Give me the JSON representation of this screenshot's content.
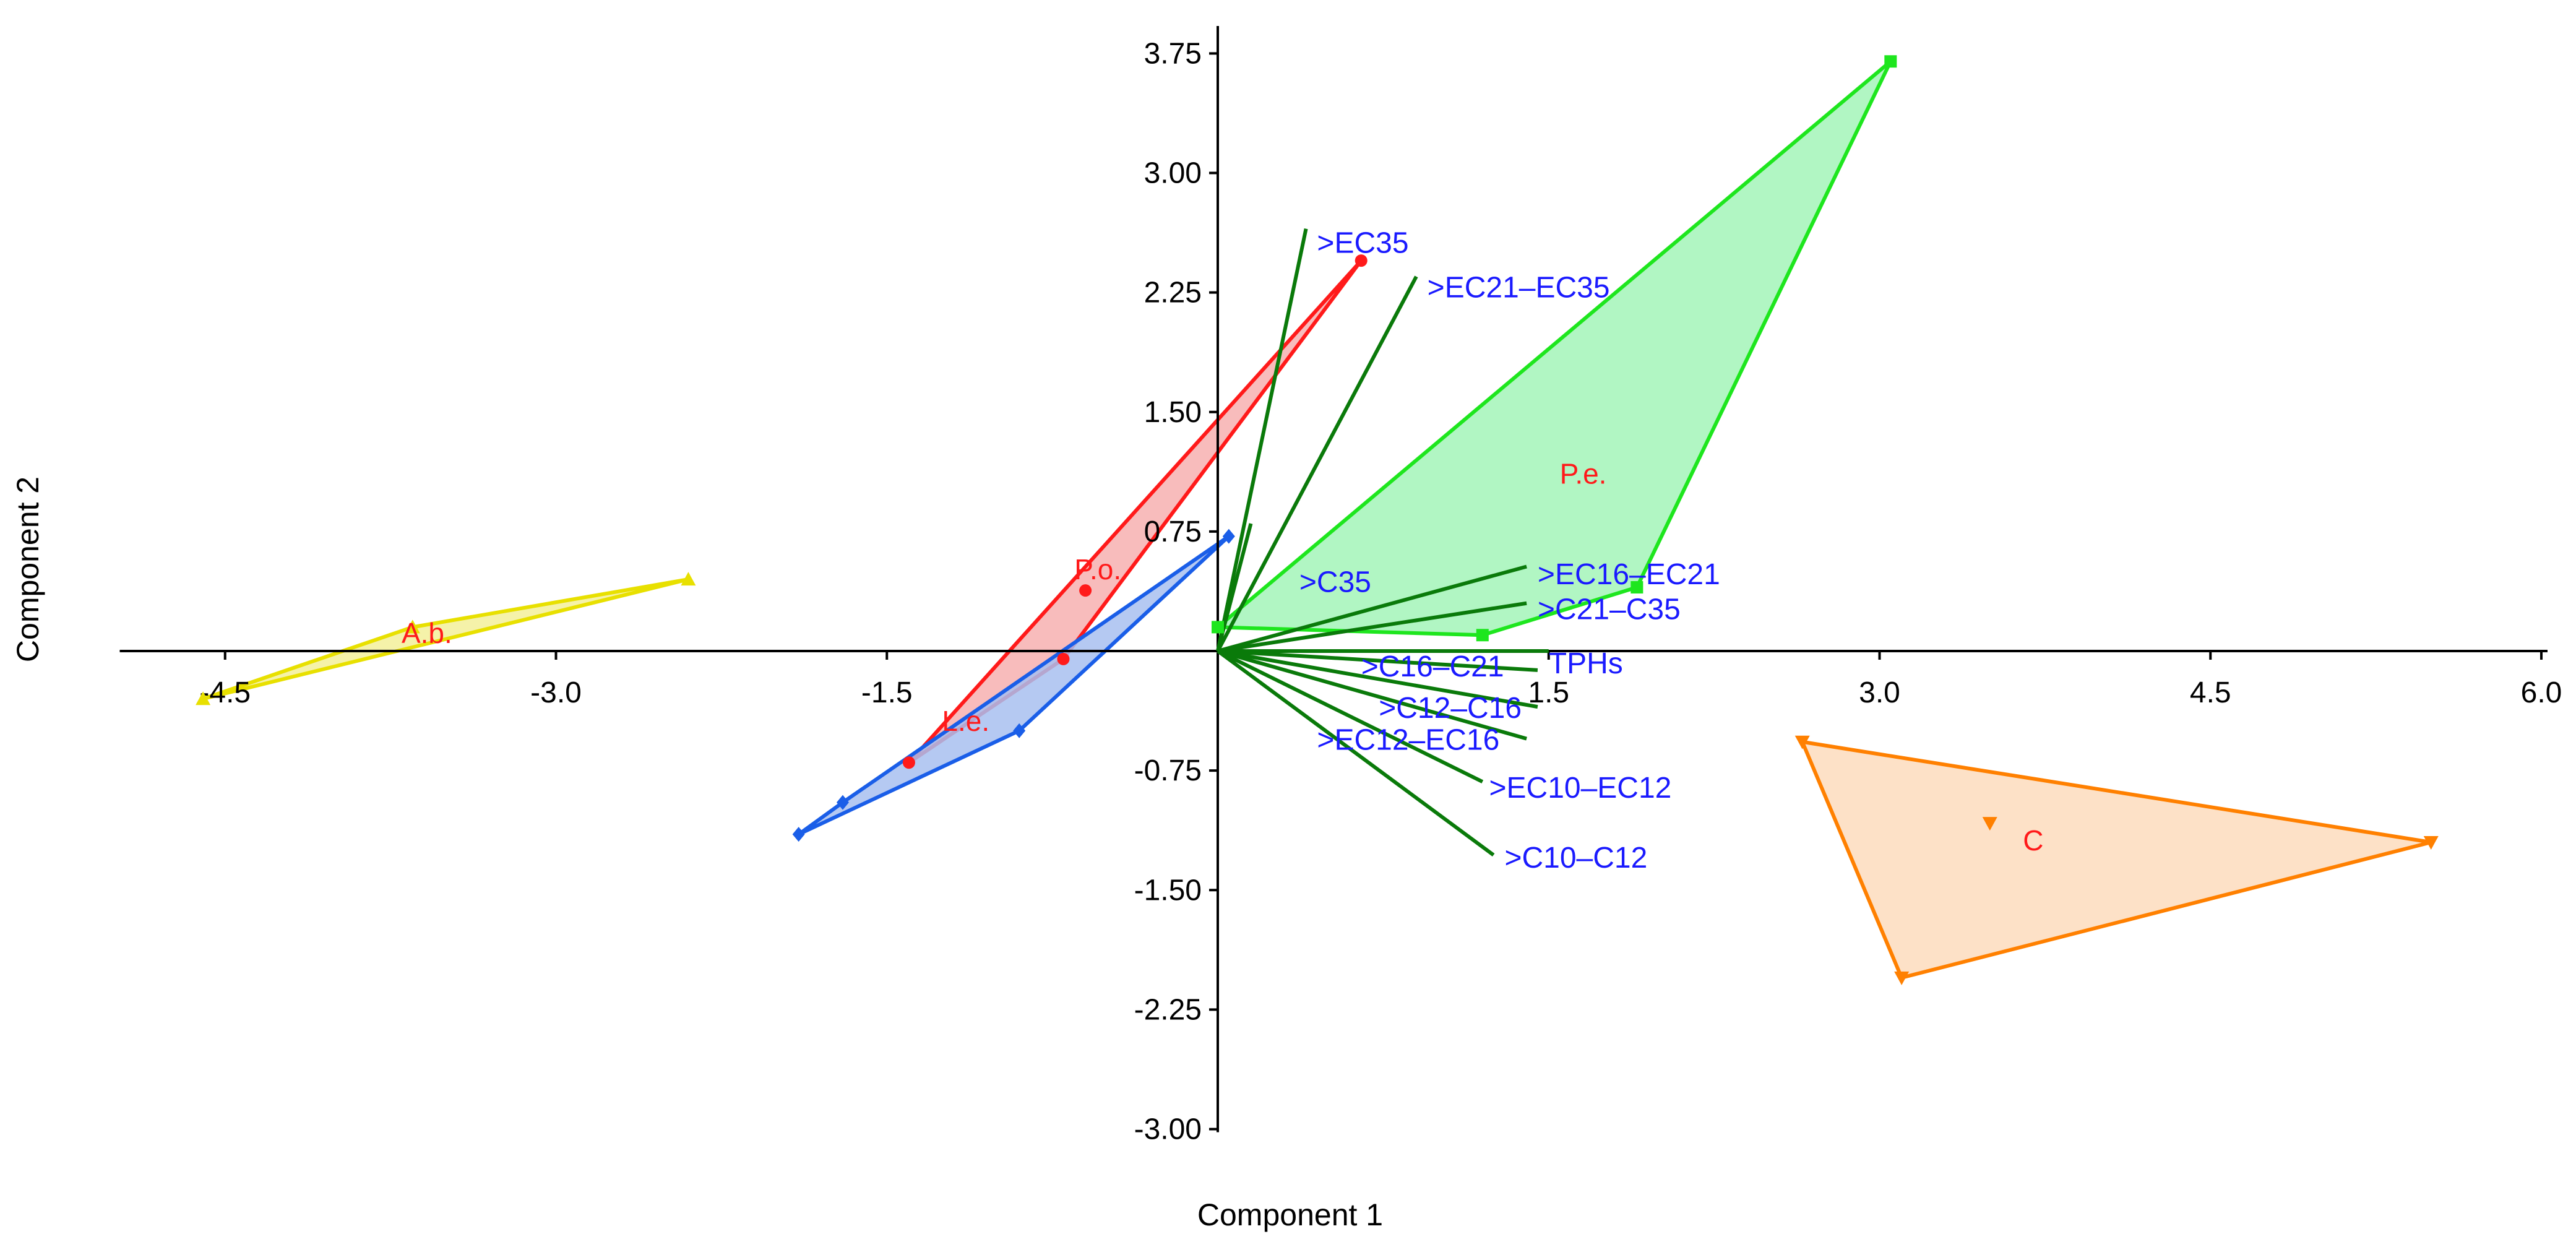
{
  "chart_data": {
    "type": "scatter",
    "subtype": "pca-biplot",
    "title": "",
    "xlabel": "Component 1",
    "ylabel": "Component 2",
    "xlim": [
      -5.0,
      6.0
    ],
    "ylim": [
      -3.0,
      4.0
    ],
    "x_ticks": [
      "-4.5",
      "-3.0",
      "-1.5",
      "1.5",
      "3.0",
      "4.5",
      "6.0"
    ],
    "y_ticks": [
      "3.75",
      "3.00",
      "2.25",
      "1.50",
      "0.75",
      "-0.75",
      "-1.50",
      "-2.25",
      "-3.00"
    ],
    "grid": false,
    "groups": [
      {
        "name": "A.b.",
        "label": "A.b.",
        "color": "#e8e000",
        "fill": "#f3f09a",
        "marker": "triangle",
        "points": [
          [
            -4.6,
            -0.3
          ],
          [
            -3.65,
            0.15
          ],
          [
            -2.4,
            0.45
          ]
        ],
        "label_pos": [
          -3.7,
          0.05
        ]
      },
      {
        "name": "P.o.",
        "label": "P.o.",
        "color": "#ff1a1a",
        "fill": "#f7b0b0",
        "marker": "circle",
        "points": [
          [
            -1.4,
            -0.7
          ],
          [
            -0.7,
            -0.05
          ],
          [
            -0.6,
            0.38
          ],
          [
            0.65,
            2.45
          ]
        ],
        "label_pos": [
          -0.65,
          0.45
        ]
      },
      {
        "name": "L.e.",
        "label": "L.e.",
        "color": "#1a5ee8",
        "fill": "#a8bff0",
        "marker": "diamond",
        "points": [
          [
            -1.9,
            -1.15
          ],
          [
            -1.7,
            -0.95
          ],
          [
            -0.9,
            -0.5
          ],
          [
            0.05,
            0.72
          ]
        ],
        "label_pos": [
          -1.25,
          -0.5
        ]
      },
      {
        "name": "P.e.",
        "label": "P.e.",
        "color": "#1ee61e",
        "fill": "#a3f5b8",
        "marker": "square",
        "points": [
          [
            0.0,
            0.15
          ],
          [
            1.2,
            0.1
          ],
          [
            1.9,
            0.4
          ],
          [
            3.05,
            3.7
          ]
        ],
        "label_pos": [
          1.55,
          1.05
        ]
      },
      {
        "name": "C",
        "label": "C",
        "color": "#ff8000",
        "fill": "#fddcbd",
        "marker": "inverted-triangle",
        "points": [
          [
            2.65,
            -0.57
          ],
          [
            3.1,
            -2.05
          ],
          [
            3.5,
            -1.08
          ],
          [
            5.5,
            -1.2
          ]
        ],
        "label_pos": [
          3.65,
          -1.25
        ]
      }
    ],
    "vector_color": "#0a7a0a",
    "vector_label_color": "#1a1aff",
    "vectors": [
      {
        "name": ">EC35",
        "end": [
          0.4,
          2.65
        ],
        "label_pos": [
          0.45,
          2.5
        ]
      },
      {
        "name": ">EC21–EC35",
        "end": [
          0.9,
          2.35
        ],
        "label_pos": [
          0.95,
          2.22
        ]
      },
      {
        "name": ">C35",
        "end": [
          0.15,
          0.8
        ],
        "label_pos": [
          0.37,
          0.37
        ]
      },
      {
        "name": ">EC16–EC21",
        "end": [
          1.4,
          0.53
        ],
        "label_pos": [
          1.45,
          0.42
        ]
      },
      {
        "name": ">C21–C35",
        "end": [
          1.4,
          0.3
        ],
        "label_pos": [
          1.45,
          0.2
        ]
      },
      {
        "name": "TPHs",
        "end": [
          1.5,
          0.0
        ],
        "label_pos": [
          1.5,
          -0.14
        ]
      },
      {
        "name": ">C16–C21",
        "end": [
          1.45,
          -0.12
        ],
        "label_pos": [
          0.65,
          -0.16
        ]
      },
      {
        "name": ">C12–C16",
        "end": [
          1.45,
          -0.35
        ],
        "label_pos": [
          0.73,
          -0.42
        ]
      },
      {
        "name": ">EC12–EC16",
        "end": [
          1.4,
          -0.55
        ],
        "label_pos": [
          0.45,
          -0.62
        ]
      },
      {
        "name": ">EC10–EC12",
        "end": [
          1.2,
          -0.82
        ],
        "label_pos": [
          1.23,
          -0.92
        ]
      },
      {
        "name": ">C10–C12",
        "end": [
          1.25,
          -1.28
        ],
        "label_pos": [
          1.3,
          -1.36
        ]
      }
    ]
  }
}
